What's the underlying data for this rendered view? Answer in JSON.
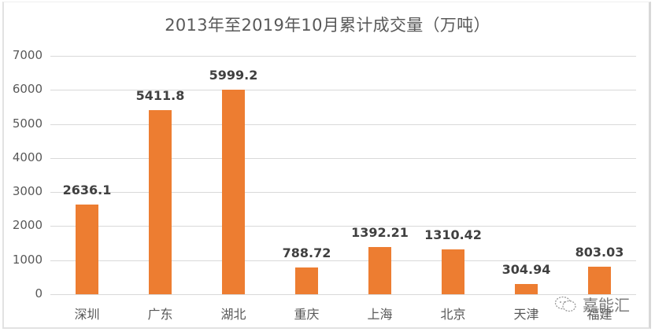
{
  "title": "2013年至2019年10月累计成交量（万吨）",
  "watermark": {
    "icon": "wechat-icon",
    "text": "嘉能汇"
  },
  "colors": {
    "bar": "#ED7D31",
    "grid": "#D9D9D9",
    "text": "#595959",
    "label": "#404040"
  },
  "chart_data": {
    "type": "bar",
    "title": "2013年至2019年10月累计成交量（万吨）",
    "xlabel": "",
    "ylabel": "",
    "categories": [
      "深圳",
      "广东",
      "湖北",
      "重庆",
      "上海",
      "北京",
      "天津",
      "福建"
    ],
    "values": [
      2636.1,
      5411.8,
      5999.2,
      788.72,
      1392.21,
      1310.42,
      304.94,
      803.03
    ],
    "value_labels": [
      "2636.1",
      "5411.8",
      "5999.2",
      "788.72",
      "1392.21",
      "1310.42",
      "304.94",
      "803.03"
    ],
    "ylim": [
      0,
      7000
    ],
    "yticks": [
      "0",
      "1000",
      "2000",
      "3000",
      "4000",
      "5000",
      "6000",
      "7000"
    ],
    "grid": true,
    "legend": null,
    "data_labels": true
  }
}
